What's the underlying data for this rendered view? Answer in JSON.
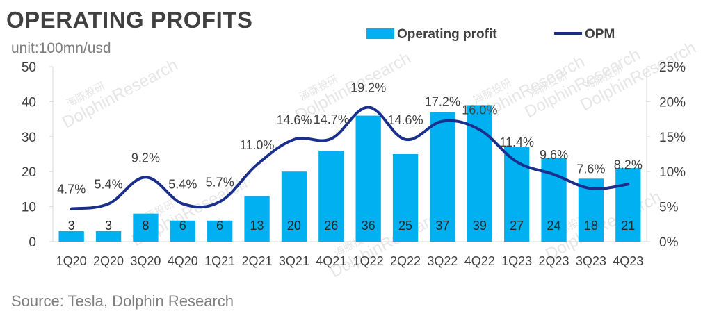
{
  "header": {
    "title": "OPERATING PROFITS",
    "unit": "unit:100mn/usd"
  },
  "footer": {
    "source": "Source: Tesla, Dolphin Research"
  },
  "watermark": {
    "text": "DolphinResearch",
    "text_cn": "海豚投研"
  },
  "colors": {
    "bar": "#00b0f0",
    "line": "#1a2f8c",
    "axis": "#d9d9d9",
    "text": "#404040",
    "bar_label": "#262626"
  },
  "chart_data": {
    "type": "bar",
    "categories": [
      "1Q20",
      "2Q20",
      "3Q20",
      "4Q20",
      "1Q21",
      "2Q21",
      "3Q21",
      "4Q21",
      "1Q22",
      "2Q22",
      "3Q22",
      "4Q22",
      "1Q23",
      "2Q23",
      "3Q23",
      "4Q23"
    ],
    "series": [
      {
        "name": "Operating profit",
        "type": "bar",
        "axis": "left",
        "values": [
          3,
          3,
          8,
          6,
          6,
          13,
          20,
          26,
          36,
          25,
          37,
          39,
          27,
          24,
          18,
          21
        ],
        "labels": [
          "3",
          "3",
          "8",
          "6",
          "6",
          "13",
          "20",
          "26",
          "36",
          "25",
          "37",
          "39",
          "27",
          "24",
          "18",
          "21"
        ]
      },
      {
        "name": "OPM",
        "type": "line",
        "axis": "right",
        "values": [
          4.7,
          5.4,
          9.2,
          5.4,
          5.7,
          11.0,
          14.6,
          14.7,
          19.2,
          14.6,
          17.2,
          16.0,
          11.4,
          9.6,
          7.6,
          8.2
        ],
        "labels": [
          "4.7%",
          "5.4%",
          "9.2%",
          "5.4%",
          "5.7%",
          "11.0%",
          "14.6%",
          "14.7%",
          "19.2%",
          "14.6%",
          "17.2%",
          "16.0%",
          "11.4%",
          "9.6%",
          "7.6%",
          "8.2%"
        ]
      }
    ],
    "y_left": {
      "range": [
        0,
        50
      ],
      "ticks": [
        "0",
        "10",
        "20",
        "30",
        "40",
        "50"
      ]
    },
    "y_right": {
      "range": [
        0,
        25
      ],
      "ticks": [
        "0%",
        "5%",
        "10%",
        "15%",
        "20%",
        "25%"
      ]
    },
    "legend": {
      "position": "top-right",
      "items": [
        "Operating profit",
        "OPM"
      ]
    },
    "grid": false
  }
}
